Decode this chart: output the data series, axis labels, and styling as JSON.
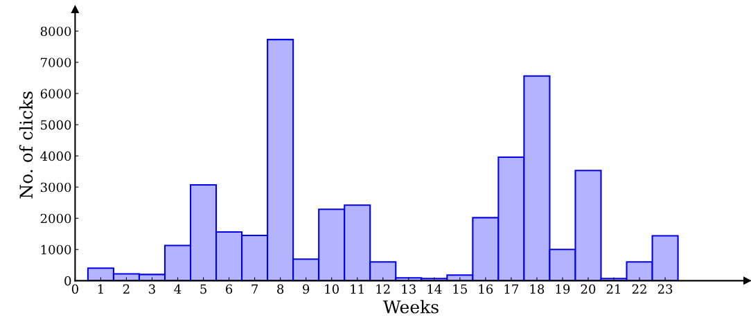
{
  "chart_data": {
    "type": "bar",
    "xlabel": "Weeks",
    "ylabel": "No. of clicks",
    "x": [
      1,
      2,
      3,
      4,
      5,
      6,
      7,
      8,
      9,
      10,
      11,
      12,
      13,
      14,
      15,
      16,
      17,
      18,
      19,
      20,
      21,
      22,
      23
    ],
    "series": [
      {
        "color": "#b3b3ff",
        "values": [
          400,
          220,
          200,
          1130,
          3070,
          1560,
          1450,
          7730,
          690,
          2290,
          2420,
          600,
          90,
          70,
          180,
          2020,
          3960,
          6560,
          1000,
          3530,
          70,
          600,
          1440
        ]
      }
    ],
    "xlim": [
      0,
      26.2
    ],
    "ylim": [
      0,
      8700
    ],
    "xticks": [
      0,
      1,
      2,
      3,
      4,
      5,
      6,
      7,
      8,
      9,
      10,
      11,
      12,
      13,
      14,
      15,
      16,
      17,
      18,
      19,
      20,
      21,
      22,
      23
    ],
    "yticks": [
      0,
      1000,
      2000,
      3000,
      4000,
      5000,
      6000,
      7000,
      8000
    ],
    "grid": false,
    "legend": false
  }
}
